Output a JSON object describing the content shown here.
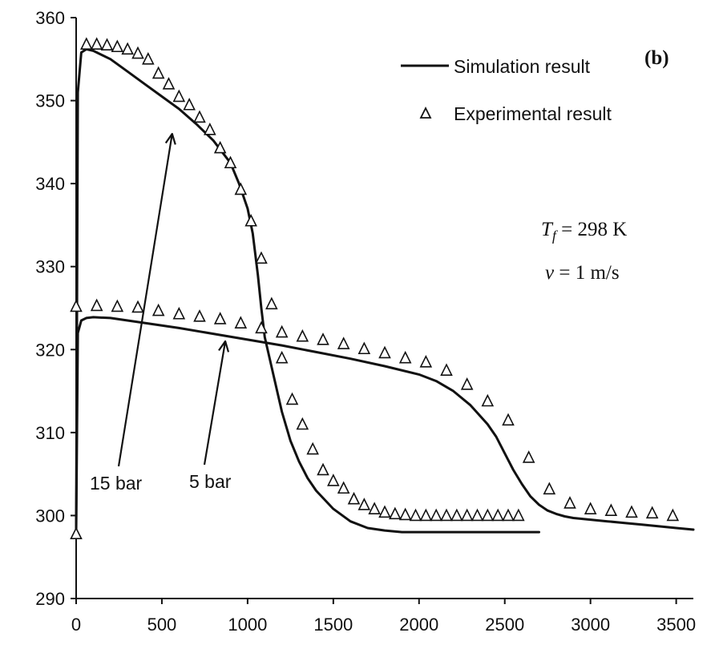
{
  "chart_data": {
    "type": "line",
    "title": "",
    "xlabel": "",
    "ylabel": "",
    "xlim": [
      0,
      3600
    ],
    "ylim": [
      290,
      360
    ],
    "x_ticks": [
      0,
      500,
      1000,
      1500,
      2000,
      2500,
      3000,
      3500
    ],
    "y_ticks": [
      290,
      300,
      310,
      320,
      330,
      340,
      350,
      360
    ],
    "grid": false,
    "legend": {
      "placement": "top-right",
      "entries": [
        "Simulation result",
        "Experimental result"
      ]
    },
    "panel_label": "(b)",
    "conditions": {
      "tf_symbol": "T",
      "tf_subscript": "f",
      "tf_value": " = 298 K",
      "v_symbol": "v",
      "v_value": " = 1 m/s"
    },
    "series": [
      {
        "name": "Simulation result",
        "group": "15 bar",
        "style": "line",
        "x": [
          0,
          10,
          30,
          60,
          100,
          200,
          300,
          400,
          500,
          600,
          700,
          800,
          900,
          950,
          1000,
          1030,
          1060,
          1080,
          1100,
          1150,
          1200,
          1250,
          1300,
          1350,
          1400,
          1500,
          1600,
          1700,
          1800,
          1900,
          2000,
          2200,
          2400,
          2600,
          2700
        ],
        "y": [
          298,
          351,
          355.8,
          356.2,
          356,
          355,
          353.5,
          352,
          350.5,
          349,
          347.2,
          345.2,
          342.5,
          340,
          337,
          334,
          329,
          325,
          321.5,
          317,
          312.5,
          309,
          306.5,
          304.5,
          303,
          300.8,
          299.3,
          298.5,
          298.2,
          298,
          298,
          298,
          298,
          298,
          298
        ]
      },
      {
        "name": "Simulation result",
        "group": "5 bar",
        "style": "line",
        "x": [
          0,
          10,
          30,
          60,
          100,
          200,
          400,
          600,
          800,
          1000,
          1200,
          1400,
          1600,
          1800,
          2000,
          2100,
          2200,
          2300,
          2400,
          2450,
          2500,
          2550,
          2600,
          2650,
          2700,
          2750,
          2800,
          2850,
          2900,
          3000,
          3100,
          3200,
          3300,
          3400,
          3500,
          3600
        ],
        "y": [
          298,
          322,
          323.5,
          323.8,
          323.9,
          323.8,
          323.2,
          322.6,
          321.9,
          321.2,
          320.5,
          319.7,
          318.9,
          318,
          317,
          316.2,
          315,
          313.3,
          311,
          309.5,
          307.5,
          305.5,
          303.8,
          302.3,
          301.3,
          300.6,
          300.2,
          299.9,
          299.7,
          299.5,
          299.3,
          299.1,
          298.9,
          298.7,
          298.5,
          298.3
        ]
      },
      {
        "name": "Experimental result",
        "group": "15 bar",
        "style": "markers",
        "x": [
          60,
          120,
          180,
          240,
          300,
          360,
          420,
          480,
          540,
          600,
          660,
          720,
          780,
          840,
          900,
          960,
          1020,
          1080,
          1140,
          1200,
          1260,
          1320,
          1380,
          1440,
          1500,
          1560,
          1620,
          1680,
          1740,
          1800,
          1860,
          1920,
          1980,
          2040,
          2100,
          2160,
          2220,
          2280,
          2340,
          2400,
          2460,
          2520,
          2580
        ],
        "y": [
          356.8,
          356.8,
          356.7,
          356.5,
          356.2,
          355.7,
          355,
          353.3,
          352,
          350.5,
          349.5,
          348,
          346.5,
          344.3,
          342.5,
          339.3,
          335.5,
          331,
          325.5,
          319,
          314,
          311,
          308,
          305.5,
          304.2,
          303.3,
          302,
          301.3,
          300.8,
          300.4,
          300.2,
          300.1,
          300,
          300,
          300,
          300,
          300,
          300,
          300,
          300,
          300,
          300,
          300
        ]
      },
      {
        "name": "Experimental result",
        "group": "5 bar",
        "style": "markers",
        "x": [
          0,
          120,
          240,
          360,
          480,
          600,
          720,
          840,
          960,
          1080,
          1200,
          1320,
          1440,
          1560,
          1680,
          1800,
          1920,
          2040,
          2160,
          2280,
          2400,
          2520,
          2640,
          2760,
          2880,
          3000,
          3120,
          3240,
          3360,
          3480
        ],
        "y": [
          325.2,
          325.3,
          325.2,
          325.1,
          324.7,
          324.3,
          324,
          323.7,
          323.2,
          322.6,
          322.1,
          321.6,
          321.2,
          320.7,
          320.1,
          319.6,
          319,
          318.5,
          317.5,
          315.8,
          313.8,
          311.5,
          307,
          303.2,
          301.5,
          300.8,
          300.6,
          300.4,
          300.3,
          300
        ]
      },
      {
        "name": "Experimental result",
        "group": "initial",
        "style": "markers",
        "x": [
          0
        ],
        "y": [
          297.8
        ]
      }
    ],
    "annotations": [
      {
        "text": "15 bar",
        "arrow_tip": [
          560,
          346
        ]
      },
      {
        "text": "5 bar",
        "arrow_tip": [
          870,
          321
        ]
      }
    ]
  }
}
